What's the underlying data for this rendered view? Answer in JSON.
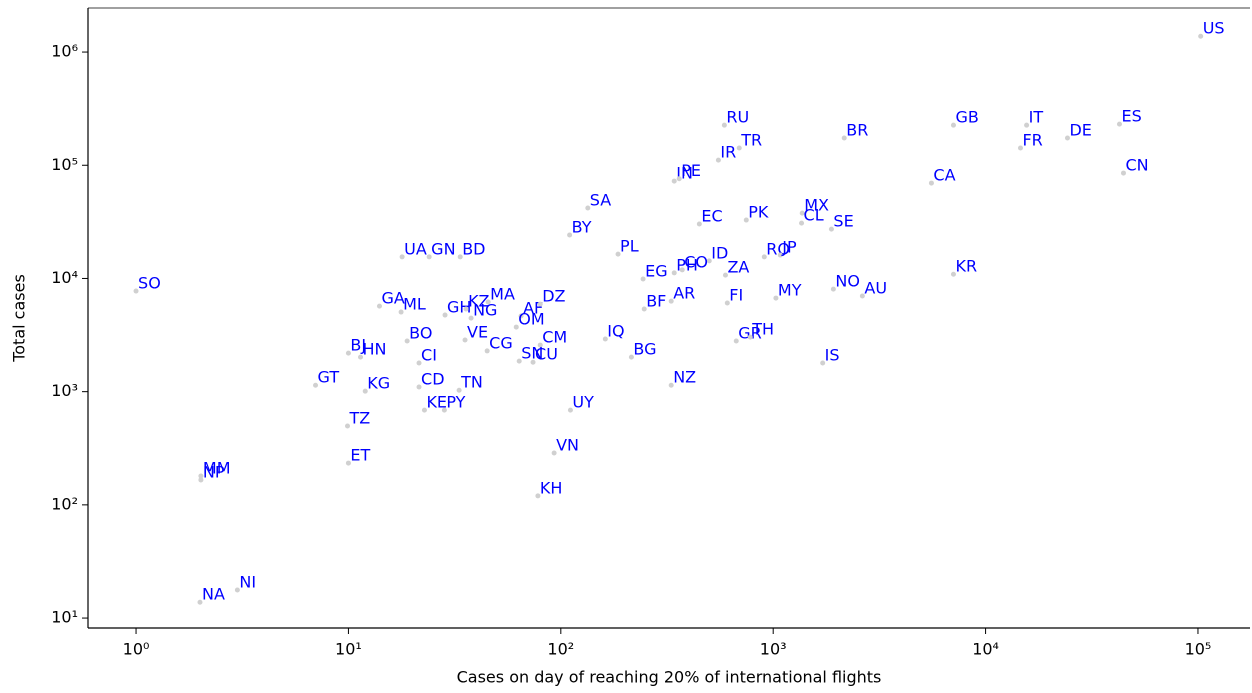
{
  "chart_data": {
    "type": "scatter",
    "xlabel": "Cases on day of reaching 20% of international flights",
    "ylabel": "Total cases",
    "xscale": "log",
    "yscale": "log",
    "xlim": [
      0.594,
      175800
    ],
    "ylim": [
      8.17,
      2450000
    ],
    "xticks": [
      {
        "value": 1,
        "label": "10⁰"
      },
      {
        "value": 10,
        "label": "10¹"
      },
      {
        "value": 100,
        "label": "10²"
      },
      {
        "value": 1000,
        "label": "10³"
      },
      {
        "value": 10000,
        "label": "10⁴"
      },
      {
        "value": 100000,
        "label": "10⁵"
      }
    ],
    "yticks": [
      {
        "value": 10,
        "label": "10¹"
      },
      {
        "value": 100,
        "label": "10²"
      },
      {
        "value": 1000,
        "label": "10³"
      },
      {
        "value": 10000,
        "label": "10⁴"
      },
      {
        "value": 100000,
        "label": "10⁵"
      },
      {
        "value": 1000000,
        "label": "10⁶"
      }
    ],
    "marker_color": "#d0d0d0",
    "label_color": "#0000ff",
    "point_labels": [
      "US",
      "ES",
      "IT",
      "GB",
      "DE",
      "FR",
      "CN",
      "CA",
      "BR",
      "RU",
      "TR",
      "IR",
      "IN",
      "PE",
      "SA",
      "BY",
      "EC",
      "PK",
      "MX",
      "CL",
      "SE",
      "UA",
      "GN",
      "BD",
      "PL",
      "RO",
      "JP",
      "ID",
      "PH",
      "CO",
      "EG",
      "ZA",
      "KR",
      "NO",
      "AU",
      "MY",
      "SO",
      "GA",
      "ML",
      "GH",
      "KZ",
      "NG",
      "MA",
      "AF",
      "DZ",
      "AR",
      "BF",
      "FI",
      "OM",
      "BO",
      "VE",
      "CM",
      "CG",
      "SN",
      "CU",
      "IQ",
      "BG",
      "GR",
      "TH",
      "IS",
      "BJ",
      "HN",
      "CI",
      "GT",
      "KG",
      "CD",
      "TN",
      "NZ",
      "KE",
      "PY",
      "UY",
      "TZ",
      "VN",
      "ET",
      "MM",
      "NP",
      "KH",
      "NI",
      "NA"
    ],
    "x": [
      103000,
      42700,
      15600,
      7060,
      24300,
      14600,
      44600,
      5560,
      2160,
      589,
      692,
      552,
      342,
      361,
      134,
      110,
      449,
      747,
      1370,
      1360,
      1880,
      17.9,
      24,
      33.6,
      186,
      908,
      1080,
      500,
      342,
      373,
      244,
      596,
      7060,
      1920,
      2630,
      1030,
      1,
      14,
      17.7,
      28.5,
      35.8,
      37.8,
      45.5,
      65,
      80,
      331,
      247,
      608,
      61.7,
      18.9,
      35.4,
      80,
      45,
      63.7,
      74,
      162,
      215,
      670,
      780,
      1710,
      10,
      11.4,
      21.5,
      7,
      12,
      21.5,
      33.2,
      331,
      22.8,
      28.3,
      111,
      9.9,
      93,
      10,
      2.02,
      2.02,
      78,
      3,
      2
    ],
    "values": [
      1380000,
      231000,
      226000,
      226000,
      174000,
      142000,
      85300,
      69600,
      174000,
      226000,
      142000,
      111000,
      72500,
      76000,
      41900,
      24200,
      30300,
      32800,
      37800,
      30800,
      27300,
      15500,
      15500,
      15500,
      16400,
      15500,
      16100,
      14300,
      11200,
      11900,
      9890,
      10700,
      10900,
      8050,
      7000,
      6710,
      7740,
      5700,
      5050,
      4750,
      5370,
      4460,
      6200,
      4660,
      5940,
      6300,
      5370,
      6070,
      3720,
      2800,
      2860,
      2580,
      2290,
      1860,
      1820,
      2920,
      2020,
      2800,
      3030,
      1790,
      2190,
      2020,
      1790,
      1140,
      1010,
      1100,
      1030,
      1140,
      687,
      687,
      687,
      497,
      287,
      234,
      180,
      166,
      120,
      17.7,
      13.8
    ]
  }
}
